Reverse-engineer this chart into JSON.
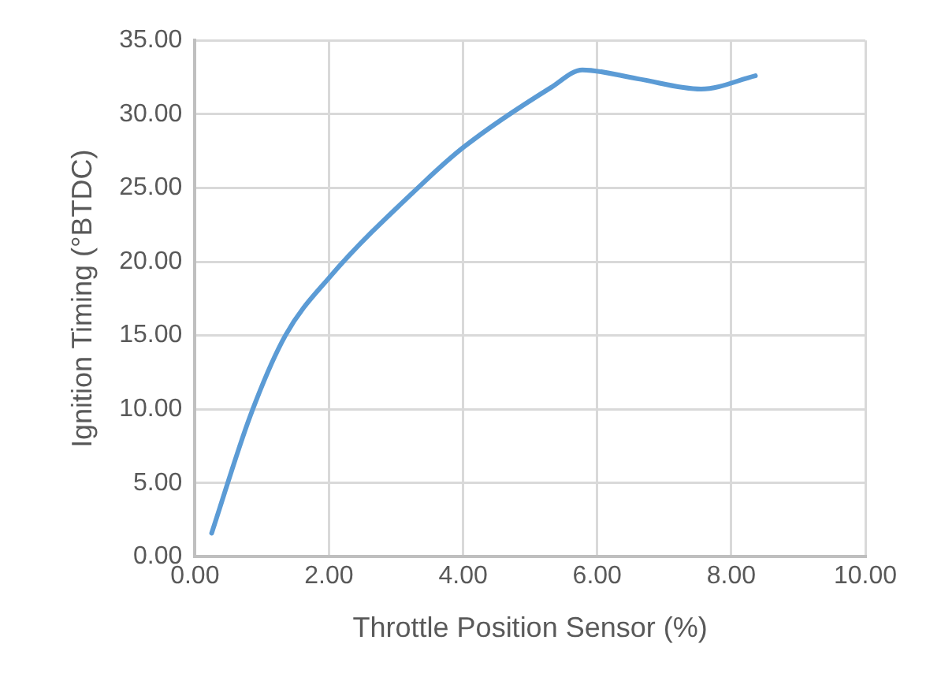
{
  "chart_data": {
    "type": "line",
    "xlabel": "Throttle Position Sensor (%)",
    "ylabel": "Ignition Timing (°BTDC)",
    "x": [
      0.25,
      0.83,
      1.35,
      2.0,
      3.42,
      4.02,
      5.31,
      5.78,
      6.6,
      7.55,
      8.36
    ],
    "series": [
      {
        "color": "#5b9bd5",
        "values": [
          1.6,
          9.6,
          15.0,
          18.9,
          25.4,
          27.8,
          31.8,
          33.0,
          32.4,
          31.7,
          32.6
        ]
      }
    ],
    "xlim": [
      0,
      10
    ],
    "xticks": [
      {
        "value": 0,
        "label": "0.00"
      },
      {
        "value": 2,
        "label": "2.00"
      },
      {
        "value": 4,
        "label": "4.00"
      },
      {
        "value": 6,
        "label": "6.00"
      },
      {
        "value": 8,
        "label": "8.00"
      },
      {
        "value": 10,
        "label": "10.00"
      }
    ],
    "ylim": [
      0,
      35
    ],
    "yticks": [
      {
        "value": 0,
        "label": "0.00"
      },
      {
        "value": 5,
        "label": "5.00"
      },
      {
        "value": 10,
        "label": "10.00"
      },
      {
        "value": 15,
        "label": "15.00"
      },
      {
        "value": 20,
        "label": "20.00"
      },
      {
        "value": 25,
        "label": "25.00"
      },
      {
        "value": 30,
        "label": "30.00"
      },
      {
        "value": 35,
        "label": "35.00"
      }
    ],
    "grid": true,
    "legend": false,
    "marker": "none",
    "line_style": "solid"
  }
}
